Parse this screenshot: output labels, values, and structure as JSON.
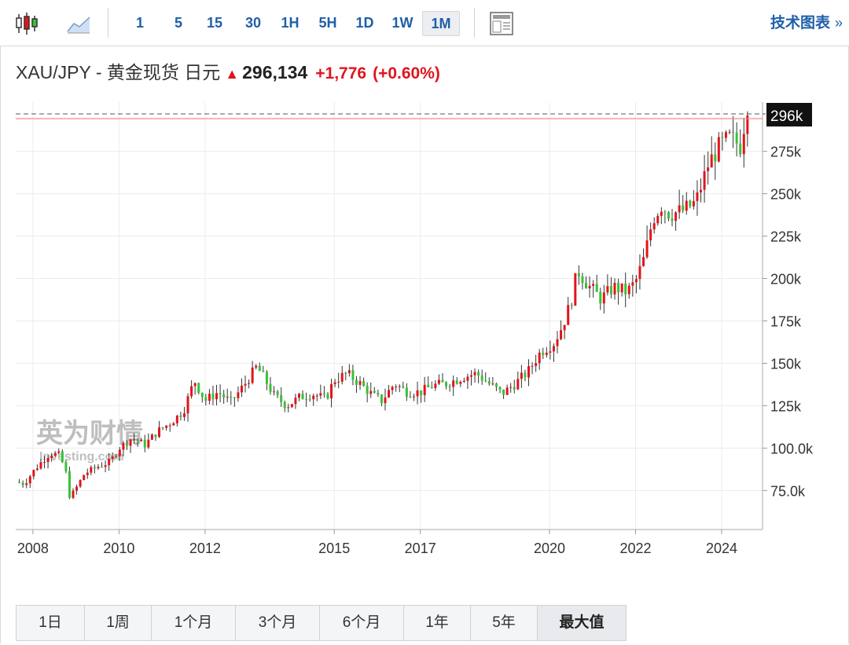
{
  "toolbar": {
    "intervals": [
      "1",
      "5",
      "15",
      "30",
      "1H",
      "5H",
      "1D",
      "1W",
      "1M"
    ],
    "active_interval": "1M",
    "tech_chart_label": "技术图表",
    "tech_chart_chevron": "»",
    "icons": [
      "candlestick-icon",
      "line-chart-icon",
      "layout-icon"
    ]
  },
  "quote": {
    "symbol": "XAU/JPY - 黄金现货 日元",
    "direction_glyph": "▲",
    "price": "296,134",
    "change": "+1,776",
    "change_pct": "(+0.60%)"
  },
  "watermark": {
    "brand": "英为财情",
    "site": "Investing.com"
  },
  "range_buttons": [
    "1日",
    "1周",
    "1个月",
    "3个月",
    "6个月",
    "1年",
    "5年",
    "最大值"
  ],
  "active_range": "最大值",
  "colors": {
    "up": "#e3141c",
    "down": "#35c335",
    "accent": "#1f5fa8",
    "last_line": "#f28b8b"
  },
  "chart_data": {
    "type": "candlestick",
    "title": "",
    "xlabel": "",
    "ylabel": "",
    "x_ticks": [
      "2008",
      "2010",
      "2012",
      "2015",
      "2017",
      "2020",
      "2022",
      "2024"
    ],
    "y_ticks": [
      "75.0k",
      "100.0k",
      "125k",
      "150k",
      "175k",
      "200k",
      "225k",
      "250k",
      "275k",
      "296k"
    ],
    "y_range": [
      52000,
      304000
    ],
    "x_range": [
      2007.6,
      2024.95
    ],
    "last_price_label": "296k",
    "last_price": 296134,
    "grid": true,
    "anchors": [
      [
        2007.6,
        80000
      ],
      [
        2007.8,
        79000
      ],
      [
        2008.0,
        86000
      ],
      [
        2008.2,
        92000
      ],
      [
        2008.4,
        97000
      ],
      [
        2008.6,
        96000
      ],
      [
        2008.75,
        88000
      ],
      [
        2008.85,
        72000
      ],
      [
        2008.95,
        74000
      ],
      [
        2009.2,
        85000
      ],
      [
        2009.5,
        89000
      ],
      [
        2009.8,
        92000
      ],
      [
        2010.0,
        100000
      ],
      [
        2010.3,
        106000
      ],
      [
        2010.6,
        102000
      ],
      [
        2010.9,
        110000
      ],
      [
        2011.2,
        115000
      ],
      [
        2011.5,
        122000
      ],
      [
        2011.75,
        140000
      ],
      [
        2012.0,
        128000
      ],
      [
        2012.3,
        133000
      ],
      [
        2012.6,
        127000
      ],
      [
        2012.9,
        137000
      ],
      [
        2013.2,
        148000
      ],
      [
        2013.4,
        140000
      ],
      [
        2013.6,
        131000
      ],
      [
        2013.9,
        125000
      ],
      [
        2014.2,
        130000
      ],
      [
        2014.5,
        132000
      ],
      [
        2014.8,
        129000
      ],
      [
        2015.0,
        140000
      ],
      [
        2015.3,
        144000
      ],
      [
        2015.6,
        138000
      ],
      [
        2015.9,
        131000
      ],
      [
        2016.1,
        128000
      ],
      [
        2016.4,
        138000
      ],
      [
        2016.7,
        133000
      ],
      [
        2017.0,
        133000
      ],
      [
        2017.3,
        137000
      ],
      [
        2017.6,
        138000
      ],
      [
        2018.0,
        142000
      ],
      [
        2018.3,
        144000
      ],
      [
        2018.6,
        138000
      ],
      [
        2018.9,
        132000
      ],
      [
        2019.2,
        138000
      ],
      [
        2019.5,
        145000
      ],
      [
        2019.8,
        157000
      ],
      [
        2020.1,
        162000
      ],
      [
        2020.3,
        172000
      ],
      [
        2020.5,
        186000
      ],
      [
        2020.65,
        205000
      ],
      [
        2020.9,
        196000
      ],
      [
        2021.2,
        188000
      ],
      [
        2021.5,
        195000
      ],
      [
        2021.8,
        192000
      ],
      [
        2022.0,
        198000
      ],
      [
        2022.2,
        212000
      ],
      [
        2022.4,
        235000
      ],
      [
        2022.6,
        243000
      ],
      [
        2022.8,
        238000
      ],
      [
        2023.1,
        240000
      ],
      [
        2023.4,
        245000
      ],
      [
        2023.7,
        268000
      ],
      [
        2023.95,
        278000
      ],
      [
        2024.2,
        283000
      ],
      [
        2024.45,
        278000
      ],
      [
        2024.55,
        296000
      ],
      [
        2024.65,
        296134
      ]
    ]
  }
}
